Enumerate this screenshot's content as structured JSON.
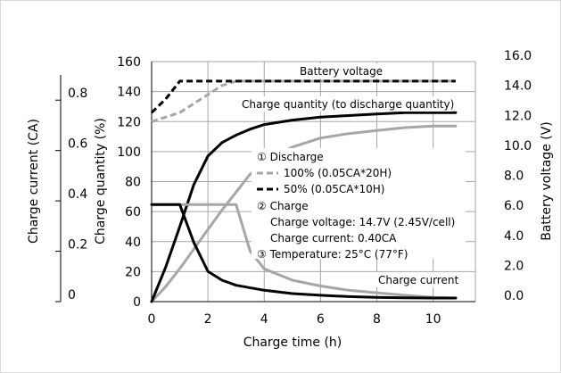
{
  "chart_data": {
    "type": "line",
    "xlabel": "Charge time (h)",
    "x_ticks": [
      "0",
      "2",
      "4",
      "6",
      "8",
      "10"
    ],
    "xlim": [
      0,
      11.5
    ],
    "left_axis": {
      "label": "Charge quantity (%)",
      "range": [
        0,
        160
      ],
      "ticks": [
        "0",
        "20",
        "40",
        "60",
        "80",
        "100",
        "120",
        "140",
        "160"
      ]
    },
    "current_axis": {
      "label": "Charge current (CA)",
      "range": [
        0,
        0.9
      ],
      "ticks": [
        "0",
        "0.2",
        "0.4",
        "0.6",
        "0.8"
      ]
    },
    "right_axis": {
      "label": "Battery voltage (V)",
      "range": [
        0,
        16
      ],
      "ticks": [
        "0.0",
        "2.0",
        "4.0",
        "6.0",
        "8.0",
        "10.0",
        "12.0",
        "14.0",
        "16.0"
      ]
    },
    "grid": true,
    "curve_labels": {
      "voltage": "Battery voltage",
      "quantity": "Charge quantity (to discharge quantity)",
      "current": "Charge current"
    },
    "legend": {
      "discharge_heading": "① Discharge",
      "series_100": "100% (0.05CA*20H)",
      "series_50": "50% (0.05CA*10H)",
      "charge_heading": "② Charge",
      "charge_voltage": "Charge voltage: 14.7V (2.45V/cell)",
      "charge_current": "Charge current: 0.40CA",
      "temperature": "③ Temperature: 25°C (77°F)"
    },
    "series": [
      {
        "curve": "voltage",
        "discharge": "100%",
        "color": "#a6a6a6",
        "dash": true,
        "axis": "right",
        "x": [
          0,
          1,
          2,
          2.5,
          3,
          10.8
        ],
        "y": [
          12.0,
          12.6,
          13.8,
          14.4,
          14.7,
          14.7
        ]
      },
      {
        "curve": "voltage",
        "discharge": "50%",
        "color": "#000000",
        "dash": true,
        "axis": "right",
        "x": [
          0,
          0.5,
          1,
          10.8
        ],
        "y": [
          12.6,
          13.5,
          14.7,
          14.7
        ]
      },
      {
        "curve": "quantity",
        "discharge": "100%",
        "color": "#a6a6a6",
        "dash": false,
        "axis": "left",
        "x": [
          0,
          0.5,
          1,
          1.5,
          2,
          2.5,
          3,
          3.5,
          4,
          5,
          6,
          7,
          8,
          9,
          10,
          10.8
        ],
        "y": [
          0,
          10,
          22,
          35,
          48,
          61,
          73,
          85,
          93,
          103,
          109,
          112,
          114,
          116,
          117,
          117
        ]
      },
      {
        "curve": "quantity",
        "discharge": "50%",
        "color": "#000000",
        "dash": false,
        "axis": "left",
        "x": [
          0,
          0.5,
          1,
          1.5,
          2,
          2.5,
          3,
          3.5,
          4,
          5,
          6,
          7,
          8,
          9,
          10,
          10.8
        ],
        "y": [
          0,
          23,
          50,
          78,
          97,
          106,
          111,
          115,
          118,
          121,
          123,
          124,
          125,
          126,
          126,
          126
        ]
      },
      {
        "curve": "current",
        "discharge": "100%",
        "color": "#a6a6a6",
        "dash": false,
        "axis": "current",
        "x": [
          0,
          1,
          2,
          3,
          3.5,
          4,
          5,
          6,
          7,
          8,
          9,
          10,
          10.8
        ],
        "y": [
          0.385,
          0.385,
          0.385,
          0.385,
          0.2,
          0.13,
          0.085,
          0.062,
          0.045,
          0.035,
          0.025,
          0.017,
          0.014
        ]
      },
      {
        "curve": "current",
        "discharge": "50%",
        "color": "#000000",
        "dash": false,
        "axis": "current",
        "x": [
          0,
          1,
          1.5,
          2,
          2.5,
          3,
          4,
          5,
          6,
          7,
          8,
          9,
          10,
          10.8
        ],
        "y": [
          0.385,
          0.385,
          0.235,
          0.12,
          0.085,
          0.065,
          0.045,
          0.032,
          0.025,
          0.02,
          0.017,
          0.015,
          0.014,
          0.014
        ]
      }
    ]
  }
}
